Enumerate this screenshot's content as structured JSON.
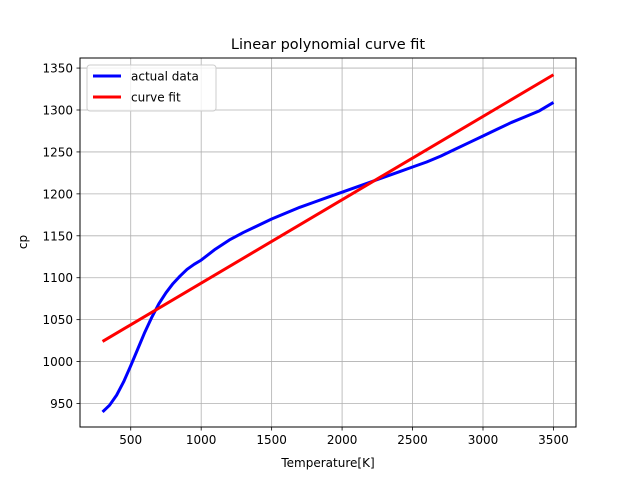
{
  "chart_data": {
    "type": "line",
    "title": "Linear polynomial curve fit",
    "xlabel": "Temperature[K]",
    "ylabel": "cp",
    "xlim": [
      140,
      3660
    ],
    "ylim": [
      922,
      1362
    ],
    "xticks": [
      500,
      1000,
      1500,
      2000,
      2500,
      3000,
      3500
    ],
    "yticks": [
      950,
      1000,
      1050,
      1100,
      1150,
      1200,
      1250,
      1300,
      1350
    ],
    "grid": true,
    "legend_position": "upper-left",
    "series": [
      {
        "name": "actual data",
        "color": "#0000ff",
        "x": [
          300,
          350,
          400,
          450,
          500,
          550,
          600,
          650,
          700,
          750,
          800,
          850,
          900,
          950,
          1000,
          1100,
          1200,
          1300,
          1400,
          1500,
          1600,
          1700,
          1800,
          1900,
          2000,
          2100,
          2200,
          2300,
          2400,
          2500,
          2600,
          2700,
          2800,
          2900,
          3000,
          3100,
          3200,
          3300,
          3400,
          3500
        ],
        "y": [
          940,
          948,
          960,
          976,
          995,
          1015,
          1035,
          1053,
          1069,
          1082,
          1093,
          1102,
          1110,
          1116,
          1121,
          1134,
          1145,
          1154,
          1162,
          1170,
          1177,
          1184,
          1190,
          1196,
          1202,
          1208,
          1214,
          1220,
          1226,
          1232,
          1238,
          1245,
          1253,
          1261,
          1269,
          1277,
          1285,
          1292,
          1299,
          1309
        ]
      },
      {
        "name": "curve fit",
        "color": "#ff0000",
        "x": [
          300,
          3500
        ],
        "y": [
          1024,
          1342
        ]
      }
    ]
  }
}
